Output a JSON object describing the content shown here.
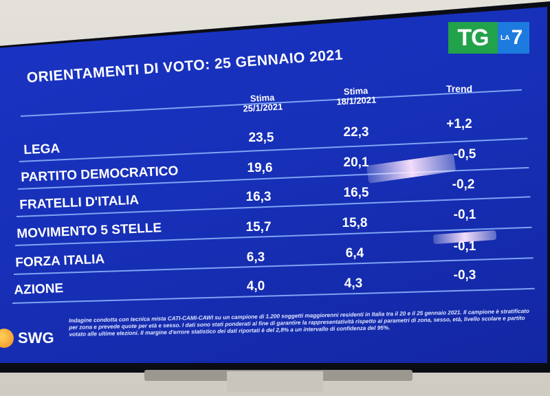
{
  "channel_logo": {
    "tg": "TG",
    "la": "LA",
    "seven": "7"
  },
  "title": "ORIENTAMENTI DI VOTO: 25 GENNAIO 2021",
  "columns": [
    {
      "line1": "Stima",
      "line2": "25/1/2021"
    },
    {
      "line1": "Stima",
      "line2": "18/1/2021"
    },
    {
      "line1": "Trend",
      "line2": ""
    }
  ],
  "rows": [
    {
      "party": "LEGA",
      "stima_25": "23,5",
      "stima_18": "22,3",
      "trend": "+1,2"
    },
    {
      "party": "PARTITO DEMOCRATICO",
      "stima_25": "19,6",
      "stima_18": "20,1",
      "trend": "-0,5"
    },
    {
      "party": "FRATELLI D'ITALIA",
      "stima_25": "16,3",
      "stima_18": "16,5",
      "trend": "-0,2"
    },
    {
      "party": "MOVIMENTO 5 STELLE",
      "stima_25": "15,7",
      "stima_18": "15,8",
      "trend": "-0,1"
    },
    {
      "party": "FORZA ITALIA",
      "stima_25": "6,3",
      "stima_18": "6,4",
      "trend": "-0,1"
    },
    {
      "party": "AZIONE",
      "stima_25": "4,0",
      "stima_18": "4,3",
      "trend": "-0,3"
    }
  ],
  "source_logo": "SWG",
  "disclaimer": "Indagine condotta con tecnica mista CATI-CAMI-CAWI su un campione di 1.200 soggetti maggiorenni residenti in Italia tra il 20 e il 25 gennaio 2021. Il campione è stratificato per zona e prevede quote per età e sesso. I dati sono stati ponderati al fine di garantire la rappresentatività rispetto ai parametri di zona, sesso, età, livello scolare e partito votato alle ultime elezioni. Il margine d'errore statistico dei dati riportati è del 2,8% a un intervallo di confidenza del 95%.",
  "colors": {
    "screen_blue": "#1730b8",
    "tg_green": "#22a24a",
    "la7_blue": "#1d7be0",
    "divider": "#7fa4f2"
  }
}
